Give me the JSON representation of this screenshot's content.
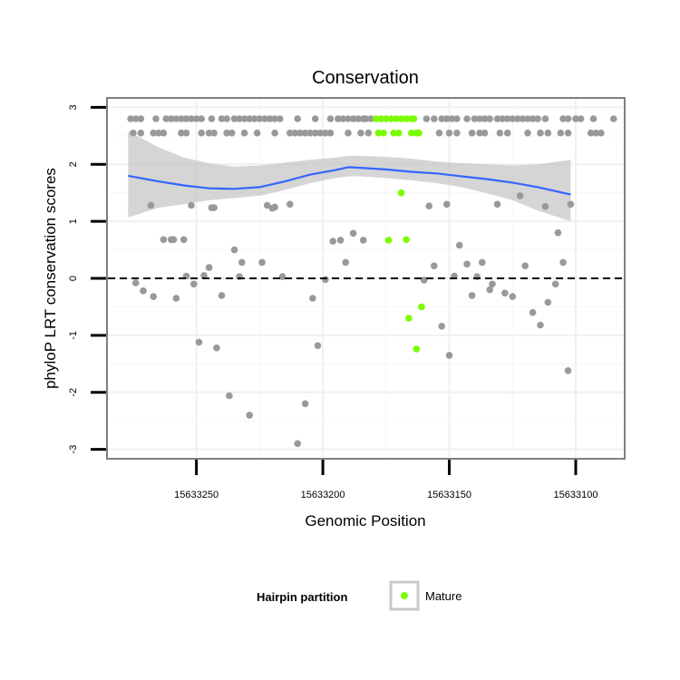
{
  "chart_data": {
    "type": "scatter",
    "title": "Conservation",
    "xlabel": "Genomic Position",
    "ylabel": "phyloP LRT conservation scores",
    "x_reversed": true,
    "xlim": [
      15633285,
      15633081
    ],
    "ylim": [
      -3.15,
      3.15
    ],
    "x_ticks": [
      15633250,
      15633200,
      15633150,
      15633100
    ],
    "y_ticks": [
      3,
      2,
      1,
      0,
      -1,
      -2,
      -3
    ],
    "reference_line": {
      "y": 0,
      "style": "dashed"
    },
    "grid": true,
    "legend": {
      "position": "bottom",
      "title": "Hairpin partition",
      "entries": [
        {
          "label": "Mature",
          "color": "#7CFC00"
        }
      ]
    },
    "colors": {
      "point": "#999999",
      "highlight": "#7CFC00",
      "smooth": "#3366FF",
      "band": "#BEBEBE"
    },
    "series": [
      {
        "name": "",
        "points": [
          [
            15633276,
            2.8
          ],
          [
            15633274,
            2.8
          ],
          [
            15633272,
            2.8
          ],
          [
            15633275,
            2.55
          ],
          [
            15633272,
            2.55
          ],
          [
            15633274,
            -0.08
          ],
          [
            15633271,
            -0.22
          ],
          [
            15633266,
            2.8
          ],
          [
            15633262,
            2.8
          ],
          [
            15633260,
            2.8
          ],
          [
            15633258,
            2.8
          ],
          [
            15633256,
            2.8
          ],
          [
            15633254,
            2.8
          ],
          [
            15633252,
            2.8
          ],
          [
            15633250,
            2.8
          ],
          [
            15633248,
            2.8
          ],
          [
            15633267,
            2.55
          ],
          [
            15633265,
            2.55
          ],
          [
            15633263,
            2.55
          ],
          [
            15633256,
            2.55
          ],
          [
            15633254,
            2.55
          ],
          [
            15633248,
            2.55
          ],
          [
            15633245,
            2.55
          ],
          [
            15633243,
            2.55
          ],
          [
            15633268,
            1.28
          ],
          [
            15633263,
            0.68
          ],
          [
            15633260,
            0.68
          ],
          [
            15633259,
            0.68
          ],
          [
            15633255,
            0.68
          ],
          [
            15633267,
            -0.32
          ],
          [
            15633258,
            -0.35
          ],
          [
            15633254,
            0.04
          ],
          [
            15633252,
            1.28
          ],
          [
            15633251,
            -0.1
          ],
          [
            15633249,
            -1.12
          ],
          [
            15633247,
            0.05
          ],
          [
            15633245,
            0.19
          ],
          [
            15633244,
            1.24
          ],
          [
            15633243,
            1.24
          ],
          [
            15633242,
            -1.22
          ],
          [
            15633240,
            -0.3
          ],
          [
            15633237,
            -2.06
          ],
          [
            15633235,
            0.5
          ],
          [
            15633233,
            0.03
          ],
          [
            15633232,
            0.28
          ],
          [
            15633229,
            -2.4
          ],
          [
            15633244,
            2.8
          ],
          [
            15633240,
            2.8
          ],
          [
            15633238,
            2.8
          ],
          [
            15633235,
            2.8
          ],
          [
            15633233,
            2.8
          ],
          [
            15633231,
            2.8
          ],
          [
            15633229,
            2.8
          ],
          [
            15633227,
            2.8
          ],
          [
            15633225,
            2.8
          ],
          [
            15633223,
            2.8
          ],
          [
            15633221,
            2.8
          ],
          [
            15633219,
            2.8
          ],
          [
            15633217,
            2.8
          ],
          [
            15633238,
            2.55
          ],
          [
            15633236,
            2.55
          ],
          [
            15633231,
            2.55
          ],
          [
            15633226,
            2.55
          ],
          [
            15633219,
            2.55
          ],
          [
            15633213,
            2.55
          ],
          [
            15633211,
            2.55
          ],
          [
            15633209,
            2.55
          ],
          [
            15633207,
            2.55
          ],
          [
            15633205,
            2.55
          ],
          [
            15633203,
            2.55
          ],
          [
            15633201,
            2.55
          ],
          [
            15633199,
            2.55
          ],
          [
            15633197,
            2.55
          ],
          [
            15633190,
            2.55
          ],
          [
            15633185,
            2.55
          ],
          [
            15633182,
            2.55
          ],
          [
            15633224,
            0.28
          ],
          [
            15633222,
            1.28
          ],
          [
            15633220,
            1.23
          ],
          [
            15633219,
            1.25
          ],
          [
            15633216,
            0.03
          ],
          [
            15633213,
            1.3
          ],
          [
            15633210,
            2.8
          ],
          [
            15633203,
            2.8
          ],
          [
            15633197,
            2.8
          ],
          [
            15633194,
            2.8
          ],
          [
            15633192,
            2.8
          ],
          [
            15633190,
            2.8
          ],
          [
            15633188,
            2.8
          ],
          [
            15633186,
            2.8
          ],
          [
            15633184,
            2.8
          ],
          [
            15633183,
            2.8
          ],
          [
            15633181,
            2.8
          ],
          [
            15633179,
            2.8
          ],
          [
            15633177,
            2.8
          ],
          [
            15633210,
            -2.9
          ],
          [
            15633207,
            -2.2
          ],
          [
            15633204,
            -0.35
          ],
          [
            15633202,
            -1.18
          ],
          [
            15633199,
            -0.02
          ],
          [
            15633196,
            0.65
          ],
          [
            15633193,
            0.67
          ],
          [
            15633191,
            0.28
          ],
          [
            15633188,
            0.79
          ],
          [
            15633184,
            0.67
          ],
          [
            15633159,
            2.8
          ],
          [
            15633156,
            2.8
          ],
          [
            15633153,
            2.8
          ],
          [
            15633151,
            2.8
          ],
          [
            15633149,
            2.8
          ],
          [
            15633147,
            2.8
          ],
          [
            15633143,
            2.8
          ],
          [
            15633140,
            2.8
          ],
          [
            15633138,
            2.8
          ],
          [
            15633136,
            2.8
          ],
          [
            15633134,
            2.8
          ],
          [
            15633131,
            2.8
          ],
          [
            15633129,
            2.8
          ],
          [
            15633127,
            2.8
          ],
          [
            15633125,
            2.8
          ],
          [
            15633123,
            2.8
          ],
          [
            15633121,
            2.8
          ],
          [
            15633119,
            2.8
          ],
          [
            15633117,
            2.8
          ],
          [
            15633115,
            2.8
          ],
          [
            15633112,
            2.8
          ],
          [
            15633105,
            2.8
          ],
          [
            15633103,
            2.8
          ],
          [
            15633100,
            2.8
          ],
          [
            15633098,
            2.8
          ],
          [
            15633093,
            2.8
          ],
          [
            15633085,
            2.8
          ],
          [
            15633154,
            2.55
          ],
          [
            15633150,
            2.55
          ],
          [
            15633147,
            2.55
          ],
          [
            15633141,
            2.55
          ],
          [
            15633138,
            2.55
          ],
          [
            15633136,
            2.55
          ],
          [
            15633130,
            2.55
          ],
          [
            15633127,
            2.55
          ],
          [
            15633119,
            2.55
          ],
          [
            15633114,
            2.55
          ],
          [
            15633111,
            2.55
          ],
          [
            15633106,
            2.55
          ],
          [
            15633103,
            2.55
          ],
          [
            15633094,
            2.55
          ],
          [
            15633092,
            2.55
          ],
          [
            15633090,
            2.55
          ],
          [
            15633160,
            -0.03
          ],
          [
            15633158,
            1.27
          ],
          [
            15633156,
            0.22
          ],
          [
            15633153,
            -0.84
          ],
          [
            15633151,
            1.3
          ],
          [
            15633150,
            -1.35
          ],
          [
            15633148,
            0.04
          ],
          [
            15633146,
            0.58
          ],
          [
            15633143,
            0.25
          ],
          [
            15633141,
            -0.3
          ],
          [
            15633139,
            0.03
          ],
          [
            15633137,
            0.28
          ],
          [
            15633134,
            -0.2
          ],
          [
            15633133,
            -0.1
          ],
          [
            15633131,
            1.3
          ],
          [
            15633128,
            -0.26
          ],
          [
            15633125,
            -0.32
          ],
          [
            15633122,
            1.45
          ],
          [
            15633120,
            0.22
          ],
          [
            15633117,
            -0.6
          ],
          [
            15633114,
            -0.82
          ],
          [
            15633112,
            1.26
          ],
          [
            15633111,
            -0.42
          ],
          [
            15633108,
            -0.1
          ],
          [
            15633107,
            0.8
          ],
          [
            15633105,
            0.28
          ],
          [
            15633103,
            -1.62
          ],
          [
            15633102,
            1.3
          ]
        ]
      },
      {
        "name": "Mature",
        "points": [
          [
            15633179,
            2.8
          ],
          [
            15633177,
            2.8
          ],
          [
            15633175,
            2.8
          ],
          [
            15633173,
            2.8
          ],
          [
            15633171,
            2.8
          ],
          [
            15633169,
            2.8
          ],
          [
            15633167,
            2.8
          ],
          [
            15633165,
            2.8
          ],
          [
            15633164,
            2.8
          ],
          [
            15633178,
            2.55
          ],
          [
            15633176,
            2.55
          ],
          [
            15633172,
            2.55
          ],
          [
            15633170,
            2.55
          ],
          [
            15633165,
            2.55
          ],
          [
            15633163,
            2.55
          ],
          [
            15633162,
            2.55
          ],
          [
            15633174,
            0.67
          ],
          [
            15633169,
            1.5
          ],
          [
            15633167,
            0.68
          ],
          [
            15633166,
            -0.7
          ],
          [
            15633163,
            -1.24
          ],
          [
            15633161,
            -0.5
          ]
        ]
      }
    ],
    "smooth_curve": {
      "x": [
        15633277,
        15633265,
        15633255,
        15633245,
        15633235,
        15633225,
        15633215,
        15633205,
        15633195,
        15633190,
        15633185,
        15633175,
        15633165,
        15633155,
        15633145,
        15633135,
        15633125,
        15633115,
        15633102
      ],
      "y": [
        1.8,
        1.7,
        1.63,
        1.58,
        1.57,
        1.6,
        1.7,
        1.82,
        1.9,
        1.95,
        1.94,
        1.91,
        1.87,
        1.84,
        1.79,
        1.74,
        1.68,
        1.6,
        1.47
      ],
      "lo": [
        1.07,
        1.24,
        1.3,
        1.37,
        1.41,
        1.45,
        1.55,
        1.67,
        1.76,
        1.79,
        1.79,
        1.76,
        1.72,
        1.67,
        1.6,
        1.49,
        1.37,
        1.19,
        1.0
      ],
      "hi": [
        2.58,
        2.3,
        2.12,
        2.02,
        1.96,
        1.98,
        2.03,
        2.08,
        2.12,
        2.15,
        2.15,
        2.13,
        2.1,
        2.05,
        2.02,
        2.0,
        1.98,
        2.0,
        2.08
      ]
    }
  }
}
